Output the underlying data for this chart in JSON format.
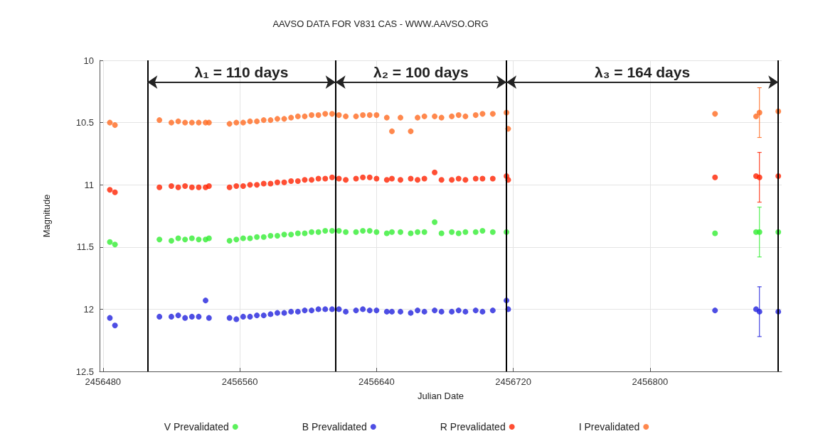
{
  "chart_data": {
    "type": "scatter",
    "title": "AAVSO DATA FOR V831 CAS - WWW.AAVSO.ORG",
    "xlabel": "Julian Date",
    "ylabel": "Magnitude",
    "x": [
      2456484,
      2456487,
      2456513,
      2456520,
      2456524,
      2456528,
      2456532,
      2456536,
      2456540,
      2456542,
      2456554,
      2456558,
      2456562,
      2456566,
      2456570,
      2456574,
      2456578,
      2456582,
      2456586,
      2456590,
      2456594,
      2456598,
      2456602,
      2456606,
      2456610,
      2456614,
      2456618,
      2456622,
      2456628,
      2456632,
      2456636,
      2456640,
      2456646,
      2456649,
      2456654,
      2456660,
      2456664,
      2456668,
      2456674,
      2456678,
      2456684,
      2456688,
      2456692,
      2456698,
      2456702,
      2456708,
      2456716,
      2456717,
      2456838,
      2456862,
      2456864,
      2456875
    ],
    "series": [
      {
        "name": "V Prevalidated",
        "color": "#33ee33",
        "values": [
          11.46,
          11.48,
          11.44,
          11.45,
          11.43,
          11.44,
          11.43,
          11.44,
          11.44,
          11.43,
          11.45,
          11.44,
          11.43,
          11.43,
          11.42,
          11.42,
          11.41,
          11.41,
          11.4,
          11.4,
          11.39,
          11.39,
          11.38,
          11.38,
          11.37,
          11.37,
          11.37,
          11.38,
          11.38,
          11.37,
          11.37,
          11.38,
          11.39,
          11.38,
          11.38,
          11.39,
          11.38,
          11.38,
          11.3,
          11.39,
          11.38,
          11.39,
          11.38,
          11.38,
          11.37,
          11.38,
          11.38,
          null,
          11.39,
          11.38,
          11.38,
          11.38
        ],
        "errors": [
          null,
          null,
          null,
          null,
          null,
          null,
          null,
          null,
          null,
          null,
          null,
          null,
          null,
          null,
          null,
          null,
          null,
          null,
          null,
          null,
          null,
          null,
          null,
          null,
          null,
          null,
          null,
          null,
          null,
          null,
          null,
          null,
          null,
          null,
          null,
          null,
          null,
          null,
          null,
          null,
          null,
          null,
          null,
          null,
          null,
          null,
          null,
          null,
          null,
          null,
          0.2,
          null
        ]
      },
      {
        "name": "B Prevalidated",
        "color": "#2222dd",
        "values": [
          12.07,
          12.13,
          12.06,
          12.06,
          12.05,
          12.07,
          12.06,
          12.06,
          11.93,
          12.07,
          12.07,
          12.08,
          12.06,
          12.06,
          12.05,
          12.05,
          12.04,
          12.03,
          12.03,
          12.02,
          12.02,
          12.01,
          12.01,
          12.0,
          12.0,
          12.0,
          12.0,
          12.02,
          12.01,
          12.0,
          12.01,
          12.01,
          12.02,
          12.02,
          12.02,
          12.03,
          12.01,
          12.02,
          12.01,
          12.02,
          12.02,
          12.01,
          12.02,
          12.01,
          12.02,
          12.01,
          11.93,
          12.0,
          12.01,
          12.0,
          12.02,
          12.02
        ],
        "errors": [
          null,
          null,
          null,
          null,
          null,
          null,
          null,
          null,
          null,
          null,
          null,
          null,
          null,
          null,
          null,
          null,
          null,
          null,
          null,
          null,
          null,
          null,
          null,
          null,
          null,
          null,
          null,
          null,
          null,
          null,
          null,
          null,
          null,
          null,
          null,
          null,
          null,
          null,
          null,
          null,
          null,
          null,
          null,
          null,
          null,
          null,
          null,
          null,
          null,
          null,
          0.2,
          null
        ]
      },
      {
        "name": "R Prevalidated",
        "color": "#ff2200",
        "values": [
          11.04,
          11.06,
          11.02,
          11.01,
          11.02,
          11.01,
          11.02,
          11.02,
          11.02,
          11.01,
          11.02,
          11.01,
          11.01,
          11.0,
          11.0,
          10.99,
          10.99,
          10.98,
          10.98,
          10.97,
          10.97,
          10.96,
          10.96,
          10.95,
          10.95,
          10.94,
          10.95,
          10.96,
          10.95,
          10.94,
          10.94,
          10.95,
          10.96,
          10.95,
          10.96,
          10.95,
          10.96,
          10.95,
          10.9,
          10.96,
          10.96,
          10.95,
          10.96,
          10.95,
          10.95,
          10.95,
          10.93,
          10.96,
          10.94,
          10.93,
          10.94,
          10.93
        ],
        "errors": [
          null,
          null,
          null,
          null,
          null,
          null,
          null,
          null,
          null,
          null,
          null,
          null,
          null,
          null,
          null,
          null,
          null,
          null,
          null,
          null,
          null,
          null,
          null,
          null,
          null,
          null,
          null,
          null,
          null,
          null,
          null,
          null,
          null,
          null,
          null,
          null,
          null,
          null,
          null,
          null,
          null,
          null,
          null,
          null,
          null,
          null,
          null,
          null,
          null,
          null,
          0.2,
          null
        ]
      },
      {
        "name": "I Prevalidated",
        "color": "#ff6a20",
        "values": [
          10.5,
          10.52,
          10.48,
          10.5,
          10.49,
          10.5,
          10.5,
          10.5,
          10.5,
          10.5,
          10.51,
          10.5,
          10.5,
          10.49,
          10.49,
          10.48,
          10.48,
          10.47,
          10.47,
          10.46,
          10.45,
          10.45,
          10.44,
          10.44,
          10.43,
          10.43,
          10.44,
          10.45,
          10.45,
          10.44,
          10.44,
          10.44,
          10.46,
          10.57,
          10.46,
          10.57,
          10.46,
          10.45,
          10.45,
          10.46,
          10.45,
          10.44,
          10.45,
          10.44,
          10.43,
          10.43,
          10.42,
          10.55,
          10.43,
          10.45,
          10.42,
          10.41
        ],
        "errors": [
          null,
          null,
          null,
          null,
          null,
          null,
          null,
          null,
          null,
          null,
          null,
          null,
          null,
          null,
          null,
          null,
          null,
          null,
          null,
          null,
          null,
          null,
          null,
          null,
          null,
          null,
          null,
          null,
          null,
          null,
          null,
          null,
          null,
          null,
          null,
          null,
          null,
          null,
          null,
          null,
          null,
          null,
          null,
          null,
          null,
          null,
          null,
          null,
          null,
          null,
          0.2,
          null
        ]
      }
    ],
    "xlim": [
      2456478,
      2456877
    ],
    "xticks": [
      2456480,
      2456560,
      2456640,
      2456720,
      2456800
    ],
    "ylim": [
      12.5,
      10
    ],
    "yticks": [
      10,
      10.5,
      11,
      11.5,
      12,
      12.5
    ],
    "ref_lines": [
      {
        "axis": "x",
        "value": 2456506,
        "color": "#000000"
      },
      {
        "axis": "x",
        "value": 2456616,
        "color": "#000000"
      },
      {
        "axis": "x",
        "value": 2456716,
        "color": "#000000"
      },
      {
        "axis": "x",
        "value": 2456875,
        "color": "#000000"
      }
    ],
    "annotations": [
      "λ₁ = 110 days",
      "λ₂ = 100 days",
      "λ₃ = 164 days"
    ],
    "grid": true,
    "legend": "bottom",
    "marker": "circle"
  }
}
